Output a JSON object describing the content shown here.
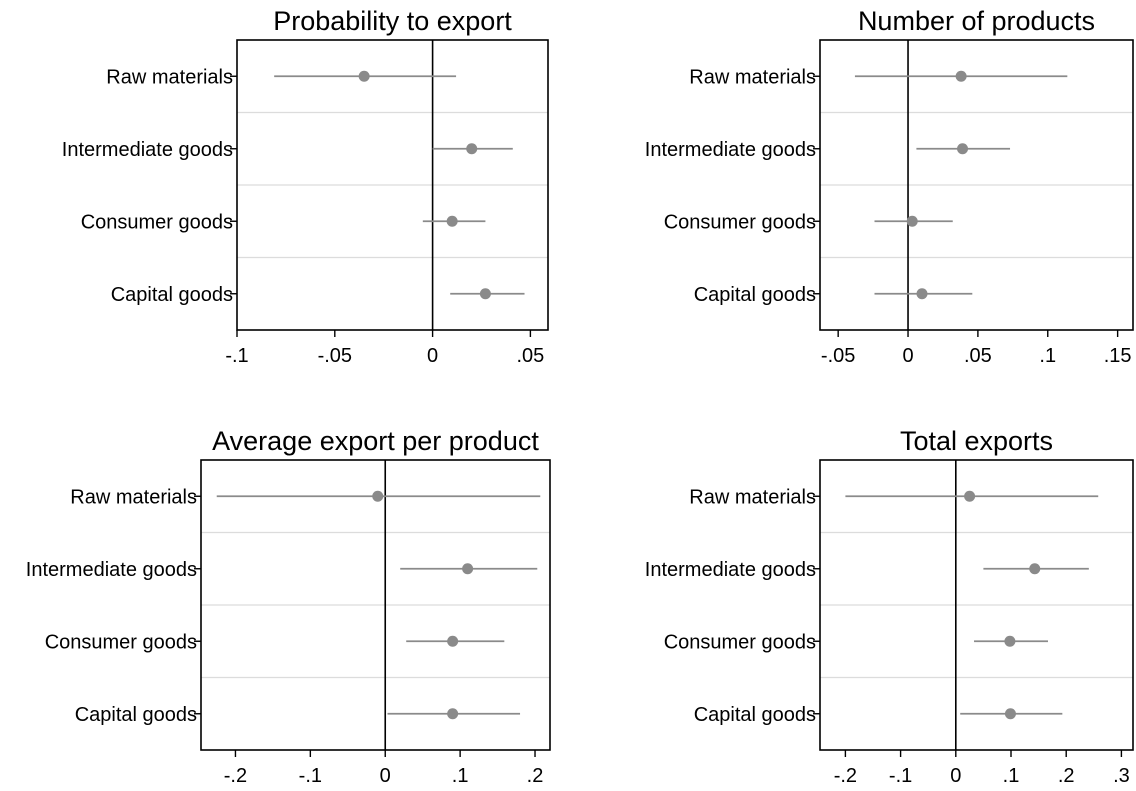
{
  "chart_data": [
    {
      "type": "scatter",
      "title": "Probability to export",
      "categories": [
        "Raw materials",
        "Intermediate goods",
        "Consumer goods",
        "Capital goods"
      ],
      "estimates": [
        -0.035,
        0.02,
        0.01,
        0.027
      ],
      "ci_low": [
        -0.081,
        0.0,
        -0.005,
        0.009
      ],
      "ci_high": [
        0.012,
        0.041,
        0.027,
        0.047
      ],
      "xticks": [
        -0.1,
        -0.05,
        0,
        0.05
      ],
      "xtick_labels": [
        "-.1",
        "-.05",
        "0",
        ".05"
      ],
      "xlim": [
        -0.1,
        0.059
      ],
      "reference_line": 0
    },
    {
      "type": "scatter",
      "title": "Number of products",
      "categories": [
        "Raw materials",
        "Intermediate goods",
        "Consumer goods",
        "Capital goods"
      ],
      "estimates": [
        0.038,
        0.039,
        0.003,
        0.01
      ],
      "ci_low": [
        -0.038,
        0.006,
        -0.024,
        -0.024
      ],
      "ci_high": [
        0.114,
        0.073,
        0.032,
        0.046
      ],
      "xticks": [
        -0.05,
        0,
        0.05,
        0.1,
        0.15
      ],
      "xtick_labels": [
        "-.05",
        "0",
        ".05",
        ".1",
        ".15"
      ],
      "xlim": [
        -0.063,
        0.161
      ],
      "reference_line": 0
    },
    {
      "type": "scatter",
      "title": "Average export per product",
      "categories": [
        "Raw materials",
        "Intermediate goods",
        "Consumer goods",
        "Capital goods"
      ],
      "estimates": [
        -0.01,
        0.11,
        0.09,
        0.09
      ],
      "ci_low": [
        -0.225,
        0.02,
        0.028,
        0.003
      ],
      "ci_high": [
        0.207,
        0.203,
        0.159,
        0.18
      ],
      "xticks": [
        -0.2,
        -0.1,
        0,
        0.1,
        0.2
      ],
      "xtick_labels": [
        "-.2",
        "-.1",
        "0",
        ".1",
        ".2"
      ],
      "xlim": [
        -0.246,
        0.22
      ],
      "reference_line": 0
    },
    {
      "type": "scatter",
      "title": "Total exports",
      "categories": [
        "Raw materials",
        "Intermediate goods",
        "Consumer goods",
        "Capital goods"
      ],
      "estimates": [
        0.025,
        0.143,
        0.098,
        0.099
      ],
      "ci_low": [
        -0.2,
        0.05,
        0.033,
        0.008
      ],
      "ci_high": [
        0.258,
        0.241,
        0.167,
        0.193
      ],
      "xticks": [
        -0.2,
        -0.1,
        0,
        0.1,
        0.2,
        0.3
      ],
      "xtick_labels": [
        "-.2",
        "-.1",
        "0",
        ".1",
        ".2",
        ".3"
      ],
      "xlim": [
        -0.246,
        0.321
      ],
      "reference_line": 0
    }
  ]
}
